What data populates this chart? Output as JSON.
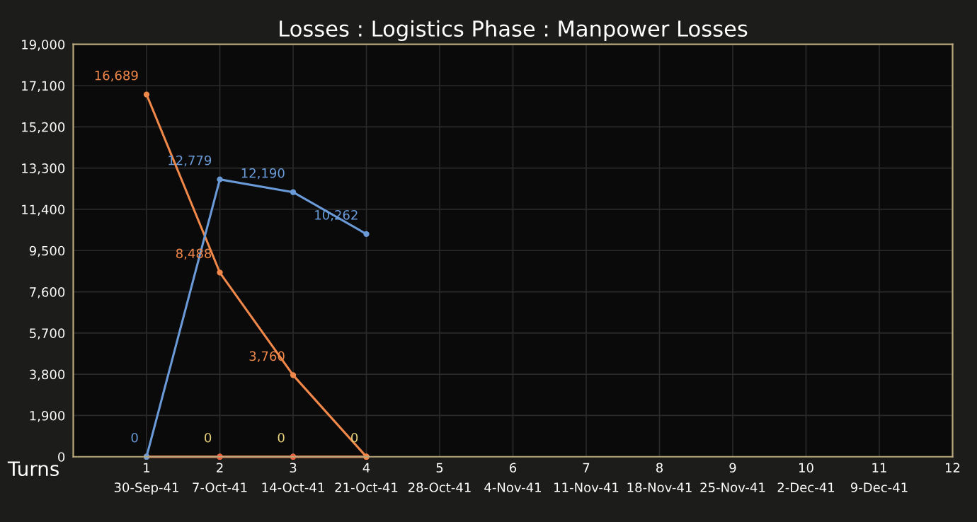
{
  "chart_data": {
    "type": "line",
    "title": "Losses : Logistics Phase : Manpower Losses",
    "xlabel": "Turns",
    "x": [
      1,
      2,
      3,
      4
    ],
    "series": [
      {
        "color": "#e8d27a",
        "values": [
          0,
          0,
          0,
          0
        ],
        "value_labels": [
          null,
          "0",
          "0",
          "0"
        ]
      },
      {
        "color": "#f06040",
        "values": [
          0,
          0,
          0,
          0
        ]
      },
      {
        "color": "#f0884a",
        "values": [
          16689,
          8488,
          3760,
          0
        ],
        "value_labels": [
          "16,689",
          "8,488",
          "3,760",
          null
        ]
      },
      {
        "color": "#6a9ad8",
        "values": [
          0,
          12779,
          12190,
          10262
        ],
        "value_labels": [
          "0",
          "12,779",
          "12,190",
          "10,262"
        ]
      }
    ],
    "xlim": [
      0,
      12
    ],
    "xticks": [
      1,
      2,
      3,
      4,
      5,
      6,
      7,
      8,
      9,
      10,
      11,
      12
    ],
    "x2lim": [
      "1941-09-23",
      "1941-12-16"
    ],
    "x2ticks": [
      {
        "value": "1941-09-30",
        "label": "30-Sep-41"
      },
      {
        "value": "1941-10-07",
        "label": "7-Oct-41"
      },
      {
        "value": "1941-10-14",
        "label": "14-Oct-41"
      },
      {
        "value": "1941-10-21",
        "label": "21-Oct-41"
      },
      {
        "value": "1941-10-28",
        "label": "28-Oct-41"
      },
      {
        "value": "1941-11-04",
        "label": "4-Nov-41"
      },
      {
        "value": "1941-11-11",
        "label": "11-Nov-41"
      },
      {
        "value": "1941-11-18",
        "label": "18-Nov-41"
      },
      {
        "value": "1941-11-25",
        "label": "25-Nov-41"
      },
      {
        "value": "1941-12-02",
        "label": "2-Dec-41"
      },
      {
        "value": "1941-12-09",
        "label": "9-Dec-41"
      }
    ],
    "ylim": [
      0,
      19000
    ],
    "yticks": [
      0,
      {
        "value": 1900,
        "label": "1,900"
      },
      {
        "value": 3800,
        "label": "3,800"
      },
      {
        "value": 5700,
        "label": "5,700"
      },
      {
        "value": 7600,
        "label": "7,600"
      },
      {
        "value": 9500,
        "label": "9,500"
      },
      {
        "value": 11400,
        "label": "11,400"
      },
      {
        "value": 13300,
        "label": "13,300"
      },
      {
        "value": 15200,
        "label": "15,200"
      },
      {
        "value": 17100,
        "label": "17,100"
      },
      {
        "value": 19000,
        "label": "19,000"
      }
    ],
    "grid": true,
    "marker": "circle",
    "line_style": "solid",
    "legend": false
  }
}
